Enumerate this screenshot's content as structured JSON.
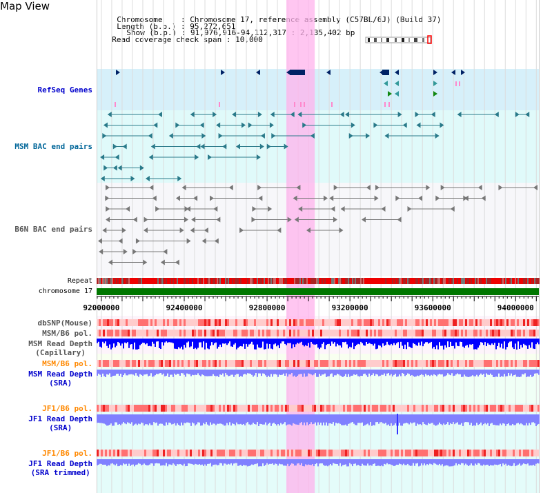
{
  "page": {
    "title": "Map View"
  },
  "header": {
    "chromosome_label": "Chromosome",
    "chromosome_value": "Chromosome 17, reference assembly (C57BL/6J) (Build 37)",
    "length_label": "Length (b.p.)",
    "length_value": "95,272,651",
    "show_label": "Show (b.p.)",
    "show_value": "91,976,916-94,112,317 : 2,135,402 bp",
    "coverage_label": "Read coverage check span",
    "coverage_value": "10,000"
  },
  "tracks": {
    "refseq": {
      "label": "RefSeq Genes",
      "color": "#0000cc"
    },
    "msm_bac": {
      "label": "MSM BAC end pairs",
      "color": "#006699"
    },
    "b6n_bac": {
      "label": "B6N BAC end pairs",
      "color": "#555555"
    },
    "repeat": {
      "label": "Repeat"
    },
    "chromosome": {
      "label": "chromosome 17"
    },
    "dbsnp": {
      "label": "dbSNP(Mouse)"
    },
    "msm_b6_pol_1": {
      "label": "MSM/B6 pol."
    },
    "msm_read_depth_cap": {
      "label1": "MSM Read Depth",
      "label2": "(Capillary)"
    },
    "msm_b6_pol_2": {
      "label": "MSM/B6 pol.",
      "color": "#ff8800"
    },
    "msm_read_depth_sra": {
      "label1": "MSM Read Depth",
      "label2": "(SRA)",
      "color": "#0000cc"
    },
    "jf1_b6_pol_1": {
      "label": "JF1/B6 pol.",
      "color": "#ff8800"
    },
    "jf1_read_depth_sra": {
      "label1": "JF1 Read Depth",
      "label2": "(SRA)",
      "color": "#0000cc"
    },
    "jf1_b6_pol_2": {
      "label": "JF1/B6 pol.",
      "color": "#ff8800"
    },
    "jf1_read_depth_trim": {
      "label1": "JF1 Read Depth",
      "label2": "(SRA trimmed)",
      "color": "#0000cc"
    }
  },
  "axis": {
    "ticks": [
      {
        "value": 92000000,
        "label": "92000000"
      },
      {
        "value": 92400000,
        "label": "92400000"
      },
      {
        "value": 92800000,
        "label": "92800000"
      },
      {
        "value": 93200000,
        "label": "93200000"
      },
      {
        "value": 93600000,
        "label": "93600000"
      },
      {
        "value": 94000000,
        "label": "94000000"
      }
    ],
    "range": [
      91976916,
      94112317
    ]
  },
  "highlight": {
    "start": 92893000,
    "end": 93030000,
    "color": "#ffb3ec"
  },
  "colors": {
    "refseq_bg": "#d6f0fa",
    "msm_bg": "#e0fafa",
    "b6n_bg": "#f7f7fa",
    "chromosome": "#007700",
    "depth_dark": "#0000ff",
    "depth_light": "#8080ff",
    "pol": "#ff5050"
  }
}
